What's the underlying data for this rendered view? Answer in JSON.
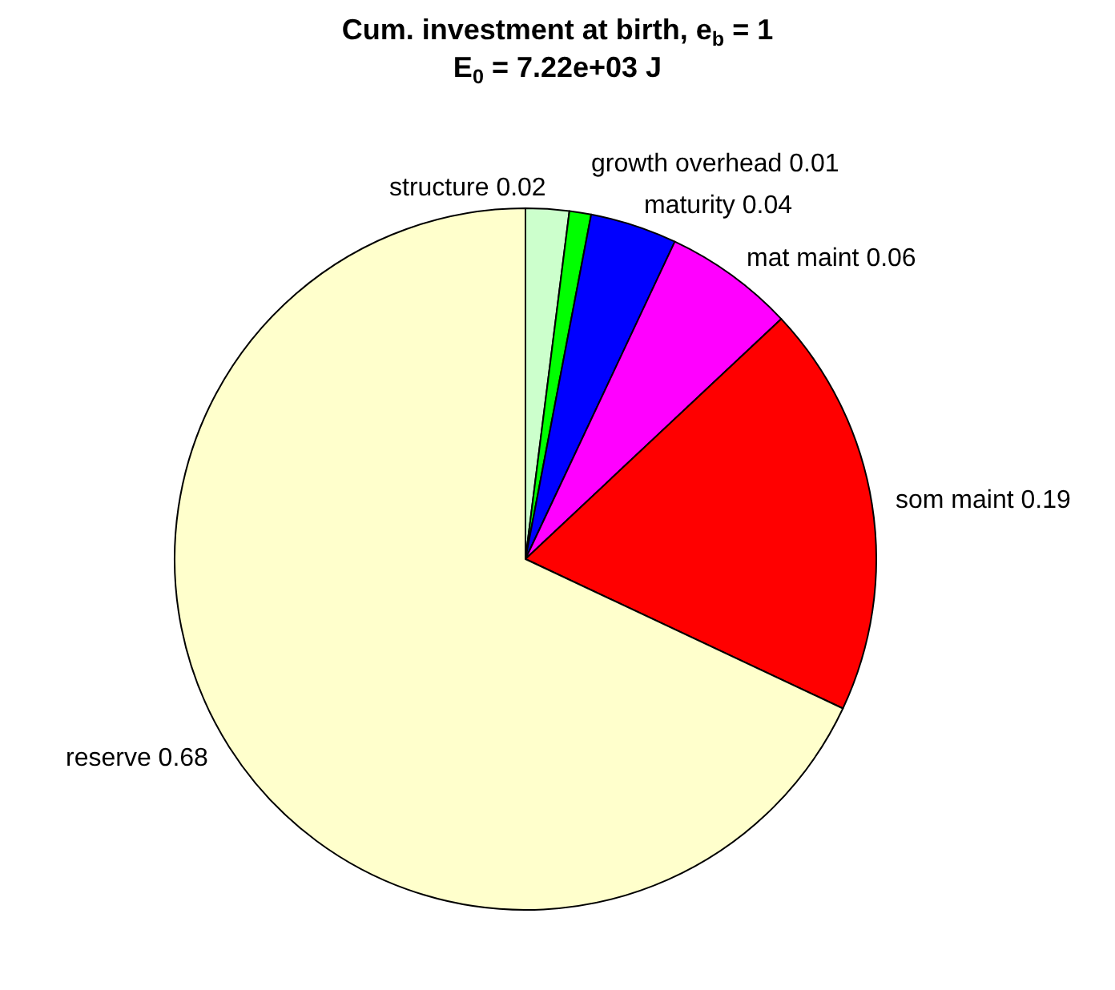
{
  "chart_data": {
    "type": "pie",
    "title": "Cum. investment at birth, e$_{b}$ = 1",
    "subtitle": "E$_{0}$ = 7.22e+03 J",
    "categories": [
      "structure 0.02",
      "growth overhead 0.01",
      "maturity 0.04",
      "mat maint 0.06",
      "som maint 0.19",
      "reserve 0.68"
    ],
    "values": [
      0.02,
      0.01,
      0.04,
      0.06,
      0.19,
      0.68
    ],
    "colors": [
      "#ccffcc",
      "#00ff00",
      "#0000ff",
      "#ff00ff",
      "#ff0000",
      "#ffffcc"
    ],
    "legend": false
  }
}
